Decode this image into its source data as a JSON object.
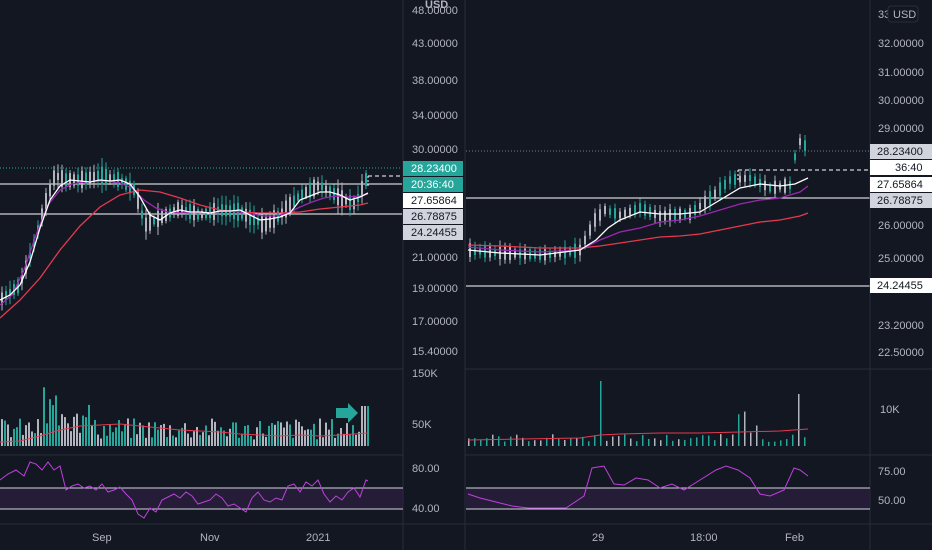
{
  "left_chart": {
    "currency": "USD",
    "price_axis": [
      "48.00000",
      "43.00000",
      "38.00000",
      "34.00000",
      "30.00000",
      "21.00000",
      "19.00000",
      "17.00000",
      "15.40000"
    ],
    "price_tags": [
      {
        "text": "28.23400",
        "bg": "#26a69a",
        "fg": "#ffffff"
      },
      {
        "text": "20:36:40",
        "bg": "#26a69a",
        "fg": "#ffffff"
      },
      {
        "text": "27.65864",
        "bg": "#ffffff",
        "fg": "#131722"
      },
      {
        "text": "26.78875",
        "bg": "#d1d4dc",
        "fg": "#131722"
      },
      {
        "text": "24.24455",
        "bg": "#d1d4dc",
        "fg": "#131722"
      }
    ],
    "volume_axis": [
      "150K",
      "50K"
    ],
    "rsi_axis": [
      "80.00",
      "40.00"
    ],
    "time_axis": [
      "Sep",
      "Nov",
      "2021"
    ]
  },
  "right_chart": {
    "currency_button": "USD",
    "price_axis_partial": "33",
    "price_axis": [
      "32.00000",
      "31.00000",
      "30.00000",
      "29.00000",
      "26.00000",
      "25.00000",
      "23.20000",
      "22.50000"
    ],
    "price_tags": [
      {
        "text": "28.23400",
        "bg": "#d1d4dc",
        "fg": "#131722"
      },
      {
        "text": "36:40",
        "bg": "#ffffff",
        "fg": "#131722"
      },
      {
        "text": "27.65864",
        "bg": "#ffffff",
        "fg": "#131722"
      },
      {
        "text": "26.78875",
        "bg": "#d1d4dc",
        "fg": "#131722"
      },
      {
        "text": "24.24455",
        "bg": "#ffffff",
        "fg": "#131722"
      }
    ],
    "volume_axis": [
      "10K"
    ],
    "rsi_axis": [
      "75.00",
      "50.00"
    ],
    "time_axis": [
      "29",
      "18:00",
      "Feb"
    ]
  },
  "colors": {
    "background": "#131722",
    "grid": "#1e2230",
    "up": "#26a69a",
    "down": "#b2b5be",
    "ema_fast": "#ffffff",
    "ema_mid": "#9c27b0",
    "ema_slow": "#e53950",
    "rsi_line": "#c040e0",
    "rsi_band": "#2a1f3d"
  }
}
